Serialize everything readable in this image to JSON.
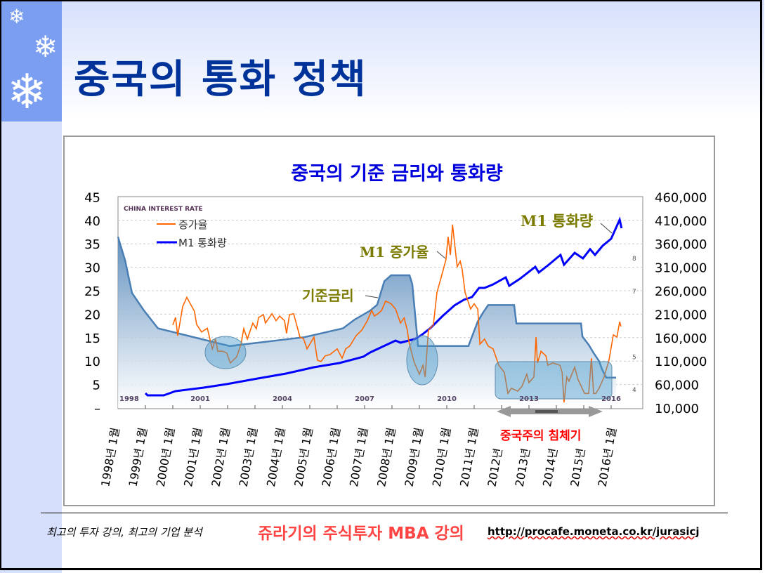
{
  "slide": {
    "title": "중국의 통화 정책",
    "footer": {
      "tagline": "최고의 투자 강의, 최고의 기업 분석",
      "brand": "쥬라기의 주식투자 MBA 강의",
      "url": "http://procafe.moneta.co.kr/jurasicj"
    }
  },
  "colors": {
    "title": "#003399",
    "growth": "#ff6600",
    "m1": "#0000ff",
    "rate_line": "#4a7fb5",
    "annotation": "#7b7b00",
    "highlight": "#ff0000"
  },
  "chart_data": {
    "type": "line",
    "title": "중국의 기준 금리와 통화량",
    "inner_title": "CHINA INTEREST RATE",
    "legend": {
      "placement": "top-left",
      "entries": [
        "증가율",
        "M1 통화량"
      ]
    },
    "left_axis": {
      "ticks": [
        "45",
        "40",
        "35",
        "30",
        "25",
        "20",
        "15",
        "10",
        "5",
        "–"
      ],
      "range": [
        0,
        45
      ]
    },
    "right_axis": {
      "ticks": [
        "460,000",
        "410,000",
        "360,000",
        "310,000",
        "260,000",
        "210,000",
        "160,000",
        "110,000",
        "60,000",
        "10,000"
      ],
      "range": [
        10000,
        460000
      ]
    },
    "rate_axis": {
      "ticks": [
        "8",
        "7",
        "5",
        "4"
      ],
      "values": [
        8,
        7,
        5,
        4
      ]
    },
    "inner_x_ticks": [
      "1998",
      "2001",
      "2004",
      "2007",
      "2010",
      "2013",
      "2016"
    ],
    "x_labels": [
      "1998년 1월",
      "1999년 1월",
      "2000년 1월",
      "2001년 1월",
      "2002년 1월",
      "2003년 1월",
      "2004년 1월",
      "2005년 1월",
      "2006년 1월",
      "2007년 1월",
      "2008년 1월",
      "2009년 1월",
      "2010년 1월",
      "2011년 1월",
      "2012년",
      "2013년",
      "2014년",
      "2015년",
      "2016년 1월"
    ],
    "series": [
      {
        "name": "증가율",
        "axis": "left",
        "points": [
          [
            2000.0,
            17.7
          ],
          [
            2000.1,
            19.3
          ],
          [
            2000.18,
            15.4
          ],
          [
            2000.36,
            21.6
          ],
          [
            2000.51,
            23.6
          ],
          [
            2000.79,
            20.6
          ],
          [
            2000.87,
            17.8
          ],
          [
            2001.05,
            16.2
          ],
          [
            2001.26,
            17
          ],
          [
            2001.44,
            12.6
          ],
          [
            2001.56,
            14.7
          ],
          [
            2001.64,
            12.1
          ],
          [
            2001.82,
            12.1
          ],
          [
            2001.97,
            11.7
          ],
          [
            2002.1,
            9.6
          ],
          [
            2002.33,
            10.9
          ],
          [
            2002.49,
            13.6
          ],
          [
            2002.59,
            16.9
          ],
          [
            2002.72,
            14.7
          ],
          [
            2002.92,
            18.1
          ],
          [
            2003.05,
            16.9
          ],
          [
            2003.13,
            19.3
          ],
          [
            2003.31,
            19.9
          ],
          [
            2003.38,
            18.1
          ],
          [
            2003.62,
            20.1
          ],
          [
            2003.77,
            18.6
          ],
          [
            2003.9,
            19.6
          ],
          [
            2004.08,
            18.6
          ],
          [
            2004.15,
            15.9
          ],
          [
            2004.26,
            19.9
          ],
          [
            2004.41,
            20.1
          ],
          [
            2004.64,
            15.1
          ],
          [
            2004.77,
            14.8
          ],
          [
            2004.9,
            12.6
          ],
          [
            2005.15,
            15.1
          ],
          [
            2005.28,
            10.2
          ],
          [
            2005.41,
            9.9
          ],
          [
            2005.56,
            11.1
          ],
          [
            2005.74,
            11.4
          ],
          [
            2006.0,
            12.6
          ],
          [
            2006.18,
            10.6
          ],
          [
            2006.31,
            12.6
          ],
          [
            2006.46,
            13.2
          ],
          [
            2006.69,
            15.4
          ],
          [
            2006.9,
            16.6
          ],
          [
            2007.1,
            18.6
          ],
          [
            2007.26,
            20.8
          ],
          [
            2007.36,
            19.6
          ],
          [
            2007.49,
            20.1
          ],
          [
            2007.62,
            20.8
          ],
          [
            2007.77,
            22.8
          ],
          [
            2007.97,
            22.2
          ],
          [
            2008.13,
            21.1
          ],
          [
            2008.31,
            18.1
          ],
          [
            2008.44,
            19.2
          ],
          [
            2008.56,
            16.6
          ],
          [
            2008.62,
            14.1
          ],
          [
            2008.77,
            10.6
          ],
          [
            2008.82,
            9.6
          ],
          [
            2009.0,
            7.2
          ],
          [
            2009.13,
            9.1
          ],
          [
            2009.21,
            6.6
          ],
          [
            2009.33,
            16.6
          ],
          [
            2009.51,
            17.7
          ],
          [
            2009.64,
            24.6
          ],
          [
            2009.85,
            29
          ],
          [
            2009.97,
            31.6
          ],
          [
            2010.05,
            36.5
          ],
          [
            2010.13,
            32.6
          ],
          [
            2010.21,
            39.1
          ],
          [
            2010.38,
            30.1
          ],
          [
            2010.49,
            31.3
          ],
          [
            2010.56,
            29.6
          ],
          [
            2010.67,
            24.6
          ],
          [
            2010.87,
            21.1
          ],
          [
            2011.0,
            22.2
          ],
          [
            2011.13,
            21.1
          ],
          [
            2011.21,
            13.6
          ],
          [
            2011.38,
            14.7
          ],
          [
            2011.51,
            13.2
          ],
          [
            2011.69,
            12.6
          ],
          [
            2011.9,
            9.1
          ],
          [
            2012.1,
            7.6
          ],
          [
            2012.23,
            3.1
          ],
          [
            2012.36,
            4.2
          ],
          [
            2012.59,
            3.6
          ],
          [
            2012.74,
            4.6
          ],
          [
            2012.92,
            7.2
          ],
          [
            2013.0,
            5.4
          ],
          [
            2013.18,
            6.6
          ],
          [
            2013.26,
            15.1
          ],
          [
            2013.31,
            9.6
          ],
          [
            2013.44,
            12.1
          ],
          [
            2013.62,
            11.1
          ],
          [
            2013.69,
            9.1
          ],
          [
            2013.87,
            9.6
          ],
          [
            2014.13,
            9.1
          ],
          [
            2014.21,
            7.6
          ],
          [
            2014.28,
            1.2
          ],
          [
            2014.38,
            6.6
          ],
          [
            2014.46,
            5.7
          ],
          [
            2014.67,
            8.7
          ],
          [
            2014.79,
            6.1
          ],
          [
            2015.03,
            3.1
          ],
          [
            2015.18,
            3.1
          ],
          [
            2015.28,
            10.6
          ],
          [
            2015.36,
            3.1
          ],
          [
            2015.44,
            3.1
          ],
          [
            2015.56,
            4.2
          ],
          [
            2015.74,
            6.6
          ],
          [
            2015.92,
            10.2
          ],
          [
            2016.08,
            15.6
          ],
          [
            2016.21,
            15.1
          ],
          [
            2016.31,
            18.4
          ],
          [
            2016.36,
            17.4
          ]
        ]
      },
      {
        "name": "M1 통화량",
        "axis": "right",
        "points": [
          [
            1999.0,
            41400
          ],
          [
            1999.08,
            37000
          ],
          [
            1999.67,
            37000
          ],
          [
            2000.1,
            46000
          ],
          [
            2001.13,
            53400
          ],
          [
            2001.97,
            60900
          ],
          [
            2003.1,
            72900
          ],
          [
            2004.13,
            83400
          ],
          [
            2005.15,
            96800
          ],
          [
            2006.08,
            105800
          ],
          [
            2006.95,
            119300
          ],
          [
            2007.2,
            128300
          ],
          [
            2008.13,
            153700
          ],
          [
            2008.31,
            149200
          ],
          [
            2008.82,
            156700
          ],
          [
            2009.08,
            165700
          ],
          [
            2009.41,
            180700
          ],
          [
            2009.85,
            206100
          ],
          [
            2010.28,
            228600
          ],
          [
            2010.62,
            240600
          ],
          [
            2010.92,
            246600
          ],
          [
            2011.18,
            266000
          ],
          [
            2011.38,
            266000
          ],
          [
            2011.69,
            273500
          ],
          [
            2012.15,
            288500
          ],
          [
            2012.28,
            270500
          ],
          [
            2012.67,
            285500
          ],
          [
            2013.23,
            310900
          ],
          [
            2013.36,
            298900
          ],
          [
            2013.69,
            313900
          ],
          [
            2014.15,
            336400
          ],
          [
            2014.28,
            315400
          ],
          [
            2014.67,
            340900
          ],
          [
            2014.97,
            328900
          ],
          [
            2015.23,
            348400
          ],
          [
            2015.41,
            336400
          ],
          [
            2015.69,
            355800
          ],
          [
            2016.0,
            370800
          ],
          [
            2016.31,
            411300
          ],
          [
            2016.38,
            393300
          ]
        ]
      },
      {
        "name": "기준금리",
        "axis": "rate",
        "unit": "%",
        "points": [
          [
            1998.0,
            8.64
          ],
          [
            1998.26,
            7.92
          ],
          [
            1998.51,
            6.93
          ],
          [
            1998.95,
            6.39
          ],
          [
            1999.46,
            5.85
          ],
          [
            2002.08,
            5.31
          ],
          [
            2004.8,
            5.58
          ],
          [
            2006.21,
            5.85
          ],
          [
            2006.64,
            6.12
          ],
          [
            2007.2,
            6.39
          ],
          [
            2007.46,
            6.57
          ],
          [
            2007.72,
            7.29
          ],
          [
            2007.97,
            7.47
          ],
          [
            2008.64,
            7.47
          ],
          [
            2008.74,
            7.2
          ],
          [
            2008.95,
            5.31
          ],
          [
            2010.79,
            5.31
          ],
          [
            2011.13,
            6.06
          ],
          [
            2011.31,
            6.31
          ],
          [
            2011.51,
            6.56
          ],
          [
            2012.46,
            6.56
          ],
          [
            2012.54,
            6.0
          ],
          [
            2014.9,
            6.0
          ],
          [
            2014.95,
            5.6
          ],
          [
            2015.18,
            5.35
          ],
          [
            2015.36,
            5.1
          ],
          [
            2015.56,
            4.85
          ],
          [
            2015.67,
            4.6
          ],
          [
            2015.82,
            4.35
          ],
          [
            2016.18,
            4.35
          ]
        ]
      }
    ],
    "annotations": {
      "growth": "M1 증가율",
      "rate": "기준금리",
      "m1": "M1 통화량",
      "slump": "중국주의 침체기"
    }
  }
}
